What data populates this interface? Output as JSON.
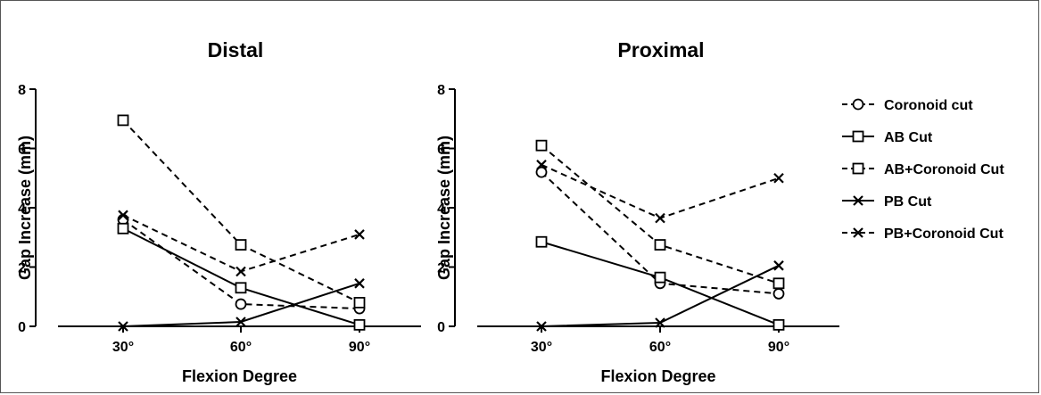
{
  "chart_data": [
    {
      "type": "line",
      "title": "Distal",
      "xlabel": "Flexion Degree",
      "ylabel": "Gap Increase (mm)",
      "categories": [
        "30°",
        "60°",
        "90°"
      ],
      "ylim": [
        0,
        8
      ],
      "yticks": [
        "0",
        "2",
        "4",
        "6",
        "8"
      ],
      "series": [
        {
          "name": "Coronoid cut",
          "values": [
            3.6,
            0.75,
            0.6
          ]
        },
        {
          "name": "AB Cut",
          "values": [
            3.3,
            1.3,
            0.05
          ]
        },
        {
          "name": "AB+Coronoid Cut",
          "values": [
            6.95,
            2.75,
            0.8
          ]
        },
        {
          "name": "PB Cut",
          "values": [
            0.0,
            0.15,
            1.45
          ]
        },
        {
          "name": "PB+Coronoid Cut",
          "values": [
            3.75,
            1.85,
            3.1
          ]
        }
      ]
    },
    {
      "type": "line",
      "title": "Proximal",
      "xlabel": "Flexion Degree",
      "ylabel": "Gap Increase (mm)",
      "categories": [
        "30°",
        "60°",
        "90°"
      ],
      "ylim": [
        0,
        8
      ],
      "yticks": [
        "0",
        "2",
        "4",
        "6",
        "8"
      ],
      "series": [
        {
          "name": "Coronoid cut",
          "values": [
            5.2,
            1.45,
            1.1
          ]
        },
        {
          "name": "AB Cut",
          "values": [
            2.85,
            1.65,
            0.05
          ]
        },
        {
          "name": "AB+Coronoid Cut",
          "values": [
            6.1,
            2.75,
            1.45
          ]
        },
        {
          "name": "PB Cut",
          "values": [
            0.0,
            0.12,
            2.05
          ]
        },
        {
          "name": "PB+Coronoid Cut",
          "values": [
            5.45,
            3.65,
            5.0
          ]
        }
      ]
    }
  ],
  "series_styles": [
    {
      "name": "Coronoid cut",
      "marker": "circle",
      "dash": true
    },
    {
      "name": "AB Cut",
      "marker": "square",
      "dash": false
    },
    {
      "name": "AB+Coronoid Cut",
      "marker": "square",
      "dash": true
    },
    {
      "name": "PB Cut",
      "marker": "cross",
      "dash": false
    },
    {
      "name": "PB+Coronoid Cut",
      "marker": "cross",
      "dash": true
    }
  ],
  "legend": {
    "placement": "right",
    "items": [
      "Coronoid cut",
      "AB Cut",
      "AB+Coronoid Cut",
      "PB Cut",
      "PB+Coronoid Cut"
    ]
  },
  "colors": {
    "line": "#000000",
    "marker_fill": "#ffffff"
  }
}
